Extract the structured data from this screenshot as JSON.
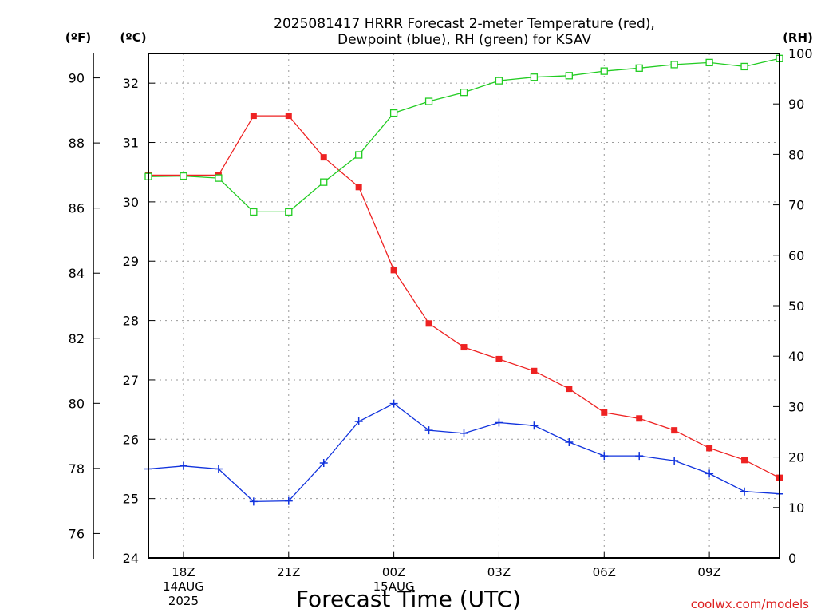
{
  "chart_data": {
    "type": "line",
    "title": [
      "2025081417 HRRR Forecast 2-meter Temperature (red),",
      "Dewpoint (blue), RH (green) for KSAV"
    ],
    "xlabel": "Forecast Time (UTC)",
    "watermark": "coolwx.com/models",
    "grid": true,
    "x_range_hours": [
      -1,
      17
    ],
    "x_ticks": [
      {
        "hour": 0,
        "lines": [
          "18Z",
          "14AUG",
          "2025"
        ]
      },
      {
        "hour": 3,
        "lines": [
          "21Z"
        ]
      },
      {
        "hour": 6,
        "lines": [
          "00Z",
          "15AUG"
        ]
      },
      {
        "hour": 9,
        "lines": [
          "03Z"
        ]
      },
      {
        "hour": 12,
        "lines": [
          "06Z"
        ]
      },
      {
        "hour": 15,
        "lines": [
          "09Z"
        ]
      }
    ],
    "x_hours": [
      -1,
      0,
      1,
      2,
      3,
      4,
      5,
      6,
      7,
      8,
      9,
      10,
      11,
      12,
      13,
      14,
      15,
      16,
      17
    ],
    "axes": {
      "fahrenheit": {
        "unit_label": "(ºF)",
        "range": [
          75.25,
          90.75
        ],
        "ticks": [
          76,
          78,
          80,
          82,
          84,
          86,
          88,
          90
        ]
      },
      "celsius": {
        "unit_label": "(ºC)",
        "range": [
          24,
          32.5
        ],
        "ticks": [
          24,
          25,
          26,
          27,
          28,
          29,
          30,
          31,
          32
        ]
      },
      "rh": {
        "unit_label": "(RH)",
        "range": [
          0,
          100
        ],
        "ticks": [
          0,
          10,
          20,
          30,
          40,
          50,
          60,
          70,
          80,
          90,
          100
        ]
      }
    },
    "series": [
      {
        "key": "temperature",
        "axis": "celsius",
        "color": "#ee2222",
        "marker": "filled-square",
        "values": [
          30.45,
          30.45,
          30.45,
          31.45,
          31.45,
          30.75,
          30.25,
          28.85,
          27.95,
          27.55,
          27.35,
          27.15,
          26.85,
          26.45,
          26.35,
          26.15,
          25.85,
          25.65,
          25.35
        ]
      },
      {
        "key": "dewpoint",
        "axis": "celsius",
        "color": "#1133dd",
        "marker": "plus",
        "values": [
          25.5,
          25.55,
          25.5,
          24.95,
          24.96,
          25.6,
          26.3,
          26.6,
          26.15,
          26.1,
          26.28,
          26.23,
          25.95,
          25.72,
          25.72,
          25.64,
          25.42,
          25.12,
          25.08
        ]
      },
      {
        "key": "rh",
        "axis": "rh",
        "color": "#22cc22",
        "marker": "hollow-square",
        "values": [
          75.6,
          75.7,
          75.3,
          68.6,
          68.6,
          74.5,
          79.9,
          88.2,
          90.5,
          92.3,
          94.6,
          95.3,
          95.6,
          96.5,
          97.1,
          97.8,
          98.2,
          97.4,
          99.0
        ]
      }
    ]
  }
}
